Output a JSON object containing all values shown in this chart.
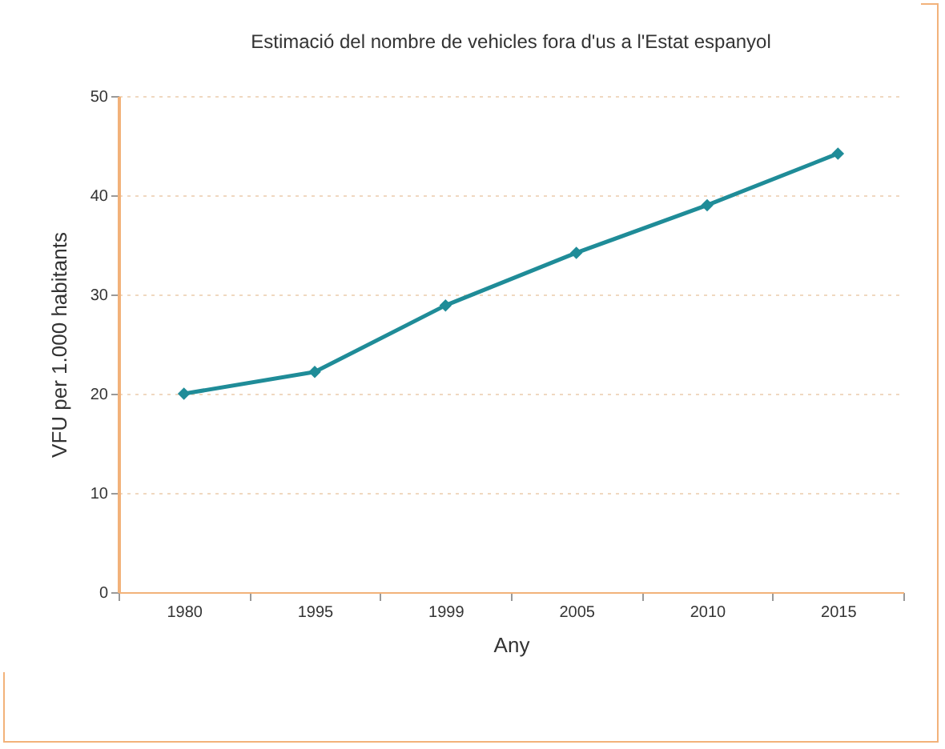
{
  "chart_data": {
    "type": "line",
    "title": "Estimació del nombre de vehicles fora d'us a l'Estat espanyol",
    "xlabel": "Any",
    "ylabel": "VFU per 1.000 habitants",
    "categories": [
      "1980",
      "1995",
      "1999",
      "2005",
      "2010",
      "2015"
    ],
    "series": [
      {
        "color": "#1f8c98",
        "values": [
          20,
          22.2,
          28.9,
          34.2,
          39.0,
          44.2
        ]
      }
    ],
    "ylim": [
      0,
      50
    ],
    "yticks": [
      0,
      10,
      20,
      30,
      40,
      50
    ],
    "grid": "y",
    "marker": "diamond",
    "line_style": "solid"
  }
}
